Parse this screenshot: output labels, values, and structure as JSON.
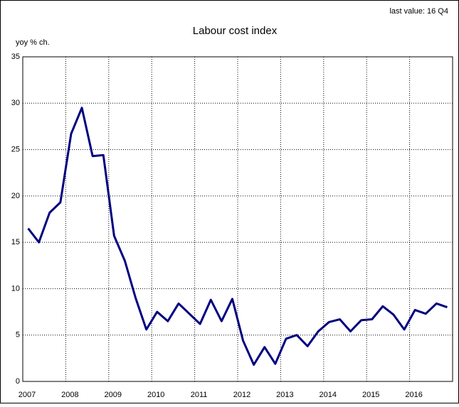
{
  "chart_data": {
    "type": "line",
    "title": "Labour cost index",
    "annotation": "last value: 16 Q4",
    "y_label": "yoy % ch.",
    "x": [
      2007.125,
      2007.375,
      2007.625,
      2007.875,
      2008.125,
      2008.375,
      2008.625,
      2008.875,
      2009.125,
      2009.375,
      2009.625,
      2009.875,
      2010.125,
      2010.375,
      2010.625,
      2010.875,
      2011.125,
      2011.375,
      2011.625,
      2011.875,
      2012.125,
      2012.375,
      2012.625,
      2012.875,
      2013.125,
      2013.375,
      2013.625,
      2013.875,
      2014.125,
      2014.375,
      2014.625,
      2014.875,
      2015.125,
      2015.375,
      2015.625,
      2015.875,
      2016.125,
      2016.375,
      2016.625,
      2016.875
    ],
    "series": [
      {
        "color": "#000080",
        "values": [
          16.5,
          15.0,
          18.2,
          19.3,
          26.7,
          29.5,
          24.3,
          24.4,
          15.7,
          13.0,
          9.0,
          5.6,
          7.5,
          6.5,
          8.4,
          7.3,
          6.2,
          8.8,
          6.5,
          8.9,
          4.4,
          1.8,
          3.7,
          1.9,
          4.6,
          5.0,
          3.8,
          5.4,
          6.4,
          6.7,
          5.4,
          6.6,
          6.7,
          8.1,
          7.2,
          5.6,
          7.7,
          7.3,
          8.4,
          8.0
        ]
      }
    ],
    "xlim": [
      2007,
      2017
    ],
    "xticks": [
      2007,
      2008,
      2009,
      2010,
      2011,
      2012,
      2013,
      2014,
      2015,
      2016
    ],
    "ylim": [
      0,
      35
    ],
    "yticks": [
      0,
      5,
      10,
      15,
      20,
      25,
      30,
      35
    ],
    "grid": true
  }
}
